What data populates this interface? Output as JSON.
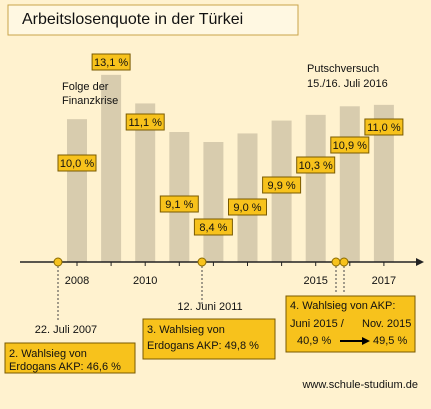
{
  "chart_data": {
    "type": "bar",
    "title": "Arbeitslosenquote in der Türkei",
    "categories": [
      "2008",
      null,
      "2010",
      null,
      null,
      null,
      null,
      "2015",
      null,
      "2017"
    ],
    "values": [
      10.0,
      13.1,
      11.1,
      9.1,
      8.4,
      9.0,
      9.9,
      10.3,
      10.9,
      11.0
    ],
    "value_labels": [
      "10,0 %",
      "13,1 %",
      "11,1 %",
      "9,1 %",
      "8,4 %",
      "9,0 %",
      "9,9 %",
      "10,3 %",
      "10,9 %",
      "11,0 %"
    ],
    "color": "#d8ccae",
    "ylim": [
      0,
      14
    ],
    "annotations": [
      "Folge der",
      "Finanzkrise",
      "Putschversuch",
      "15./16. Juli 2016",
      "22. Juli 2007",
      "2. Wahlsieg von",
      "Erdogans AKP: 46,6 %",
      "12. Juni 2011",
      "3. Wahlsieg von",
      "Erdogans AKP: 49,8 %",
      "4. Wahlsieg von  AKP:",
      "Juni 2015 /",
      "Nov. 2015",
      "40,9 %",
      "49,5 %"
    ],
    "source": "www.schule-studium.de"
  }
}
